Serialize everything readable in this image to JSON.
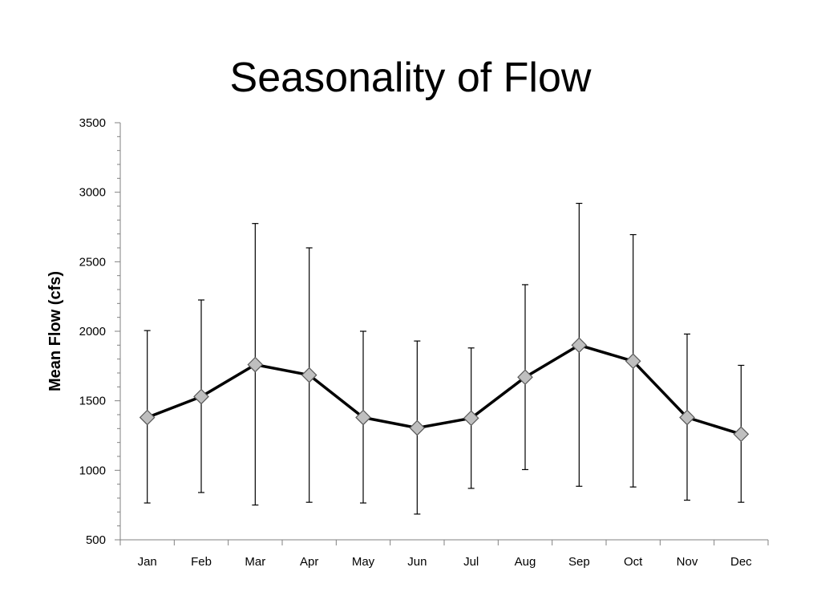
{
  "slide": {
    "title": "Seasonality of Flow"
  },
  "chart_data": {
    "type": "line",
    "title": "Seasonality of Flow",
    "xlabel": "",
    "ylabel": "Mean Flow (cfs)",
    "categories": [
      "Jan",
      "Feb",
      "Mar",
      "Apr",
      "May",
      "Jun",
      "Jul",
      "Aug",
      "Sep",
      "Oct",
      "Nov",
      "Dec"
    ],
    "series": [
      {
        "values": [
          1380,
          1530,
          1760,
          1685,
          1380,
          1305,
          1375,
          1670,
          1900,
          1785,
          1380,
          1260
        ],
        "error_high": [
          2005,
          2225,
          2775,
          2600,
          2000,
          1930,
          1880,
          2335,
          2920,
          2695,
          1980,
          1755
        ],
        "error_low": [
          765,
          840,
          750,
          770,
          765,
          685,
          870,
          1005,
          885,
          880,
          785,
          770
        ]
      }
    ],
    "ylim": [
      500,
      3500
    ],
    "yticks": [
      500,
      1000,
      1500,
      2000,
      2500,
      3000,
      3500
    ],
    "ytick_labels": [
      "500",
      "1000",
      "1500",
      "2000",
      "2500",
      "3000",
      "3500"
    ],
    "grid": false,
    "colors": {
      "line": "#000000",
      "marker_fill": "#bfbfbf",
      "marker_stroke": "#595959",
      "axis": "#808080"
    }
  }
}
